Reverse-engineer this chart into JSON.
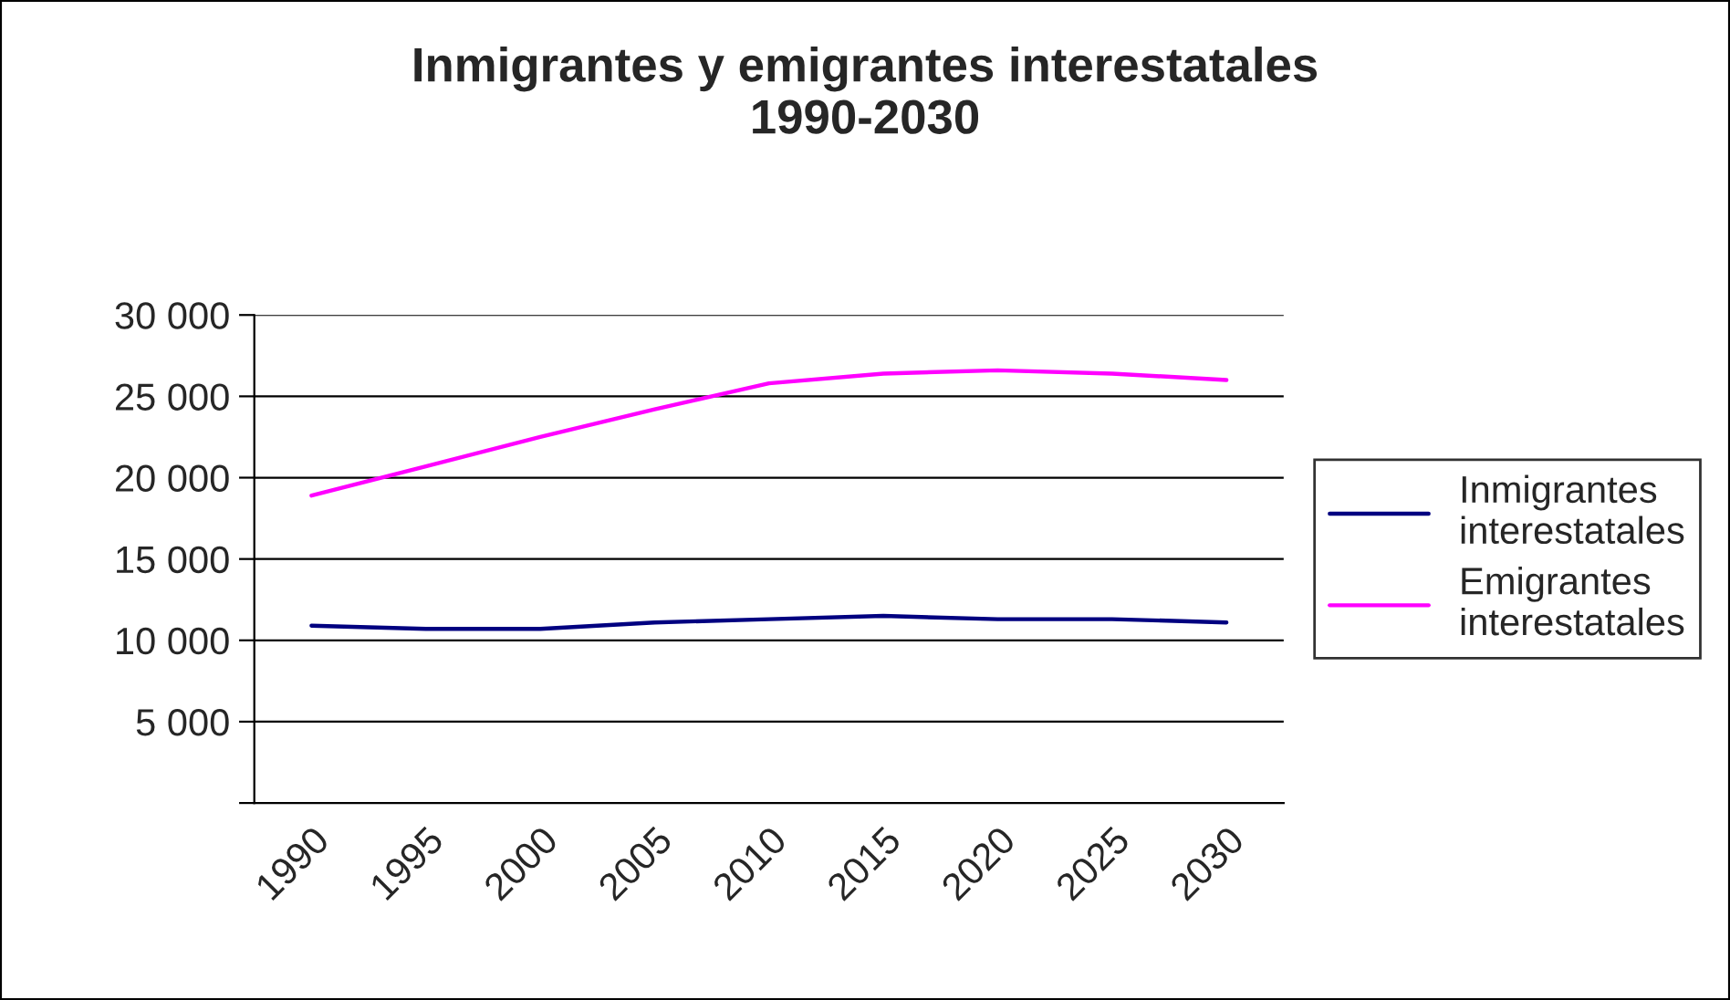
{
  "chart_data": {
    "type": "line",
    "title": "Inmigrantes y emigrantes interestatales\n1990-2030",
    "categories": [
      "1990",
      "1995",
      "2000",
      "2005",
      "2010",
      "2015",
      "2020",
      "2025",
      "2030"
    ],
    "series": [
      {
        "name": "Inmigrantes interestatales",
        "color": "#000080",
        "values": [
          10900,
          10700,
          10700,
          11100,
          11300,
          11500,
          11300,
          11300,
          11100
        ]
      },
      {
        "name": "Emigrantes interestatales",
        "color": "#ff00ff",
        "values": [
          18900,
          20700,
          22500,
          24200,
          25800,
          26400,
          26600,
          26400,
          26000
        ]
      }
    ],
    "ylim": [
      0,
      30000
    ],
    "yticks": [
      {
        "value": 0,
        "label": null
      },
      {
        "value": 5000,
        "label": "5 000"
      },
      {
        "value": 10000,
        "label": "10 000"
      },
      {
        "value": 15000,
        "label": "15 000"
      },
      {
        "value": 20000,
        "label": "20 000"
      },
      {
        "value": 25000,
        "label": "25 000"
      },
      {
        "value": 30000,
        "label": "30 000"
      }
    ],
    "grid": "y",
    "legend": "right",
    "marker": "none",
    "line_style": "solid"
  }
}
